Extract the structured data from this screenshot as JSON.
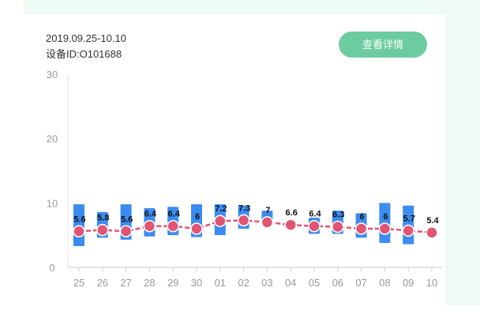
{
  "header": {
    "date_range": "2019.09.25-10.10",
    "device_id": "设备ID:O101688"
  },
  "actions": {
    "details_label": "查看详情"
  },
  "colors": {
    "accent_green": "#6ccca0",
    "bar_blue": "#3b8cf0",
    "line_red": "#e05572"
  },
  "chart_data": {
    "type": "line",
    "categories": [
      "25",
      "26",
      "27",
      "28",
      "29",
      "30",
      "01",
      "02",
      "03",
      "04",
      "05",
      "06",
      "07",
      "08",
      "09",
      "10"
    ],
    "y_ticks": [
      0,
      10,
      20,
      30
    ],
    "ylim": [
      0,
      30
    ],
    "series": [
      {
        "values": [
          5.6,
          5.8,
          5.6,
          6.4,
          6.4,
          6,
          7.2,
          7.3,
          7,
          6.6,
          6.4,
          6.3,
          6,
          6,
          5.7,
          5.4
        ],
        "labels": [
          "5.6",
          "5.8",
          "5.6",
          "6.4",
          "6.4",
          "6",
          "7.2",
          "7.3",
          "7",
          "6.6",
          "6.4",
          "6.3",
          "6",
          "6",
          "5.7",
          "5.4"
        ]
      }
    ],
    "ranges": [
      [
        3.3,
        9.8
      ],
      [
        4.6,
        8.6
      ],
      [
        4.3,
        9.8
      ],
      [
        4.8,
        9.2
      ],
      [
        5.0,
        9.4
      ],
      [
        4.7,
        9.8
      ],
      [
        5.0,
        9.8
      ],
      [
        6.0,
        9.6
      ],
      [
        6.8,
        8.8
      ],
      [
        null,
        null
      ],
      [
        5.2,
        7.7
      ],
      [
        5.2,
        8.8
      ],
      [
        4.6,
        8.4
      ],
      [
        3.8,
        10.0
      ],
      [
        3.6,
        9.6
      ],
      [
        null,
        null
      ]
    ],
    "grid": false
  }
}
